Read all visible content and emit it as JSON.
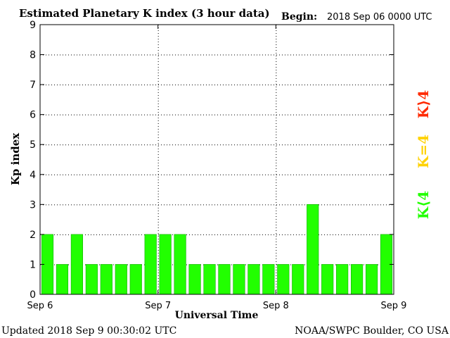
{
  "header": {
    "title": "Estimated Planetary K index (3 hour data)",
    "begin_label": "Begin:",
    "begin_value": "2018 Sep 06 0000 UTC"
  },
  "footer": {
    "updated": "Updated 2018 Sep  9 00:30:02 UTC",
    "source": "NOAA/SWPC Boulder, CO USA"
  },
  "legend": {
    "above": "K⟩4",
    "equal": "K=4",
    "below": "K⟨4"
  },
  "colors": {
    "below": "#22ff00",
    "equal": "#ffd200",
    "above": "#ff2a00",
    "bar_edge": "#11aa00",
    "axis": "#000000",
    "grid": "#000000"
  },
  "chart_data": {
    "type": "bar",
    "title": "Estimated Planetary K index (3 hour data)",
    "xlabel": "Universal Time",
    "ylabel": "Kp index",
    "ylim": [
      0,
      9
    ],
    "yticks": [
      0,
      1,
      2,
      3,
      4,
      5,
      6,
      7,
      8,
      9
    ],
    "x_tick_labels": [
      "Sep 6",
      "Sep 7",
      "Sep 8",
      "Sep 9"
    ],
    "grid": "dotted, horizontal at each Kp level and vertical at day boundaries",
    "interval": "3 hour",
    "values": [
      2,
      1,
      2,
      1,
      1,
      1,
      1,
      2,
      2,
      2,
      1,
      1,
      1,
      1,
      1,
      1,
      1,
      1,
      3,
      1,
      1,
      1,
      1,
      2
    ]
  }
}
